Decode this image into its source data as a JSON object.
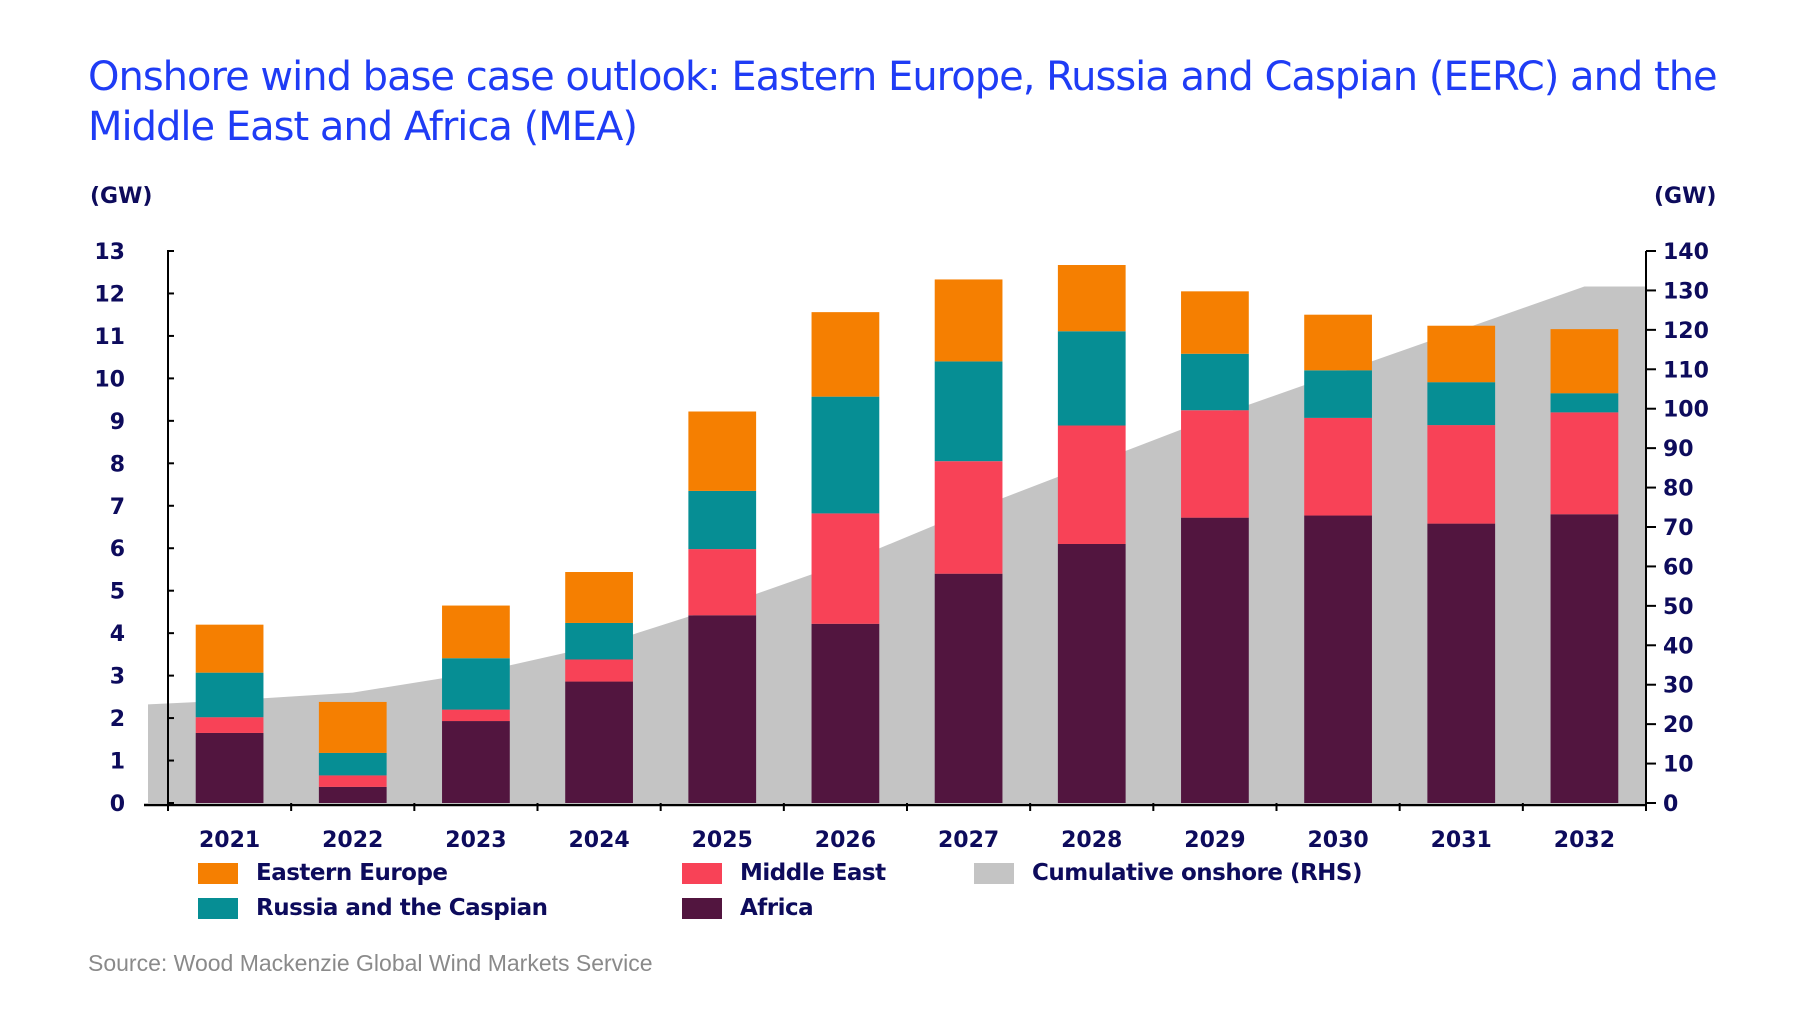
{
  "title": "Onshore wind base case outlook: Eastern Europe, Russia and Caspian (EERC) and the Middle East and Africa (MEA)",
  "source": "Source: Wood Mackenzie Global Wind Markets Service",
  "chart_data": {
    "type": "bar",
    "stacked": true,
    "title": "Onshore wind base case outlook: Eastern Europe, Russia and Caspian (EERC) and the Middle East and Africa (MEA)",
    "xlabel": "",
    "ylabel": "(GW)",
    "y2label": "(GW)",
    "ylim": [
      0,
      13
    ],
    "y2lim": [
      0,
      140
    ],
    "yticks": [
      "0",
      "1",
      "2",
      "3",
      "4",
      "5",
      "6",
      "7",
      "8",
      "9",
      "10",
      "11",
      "12",
      "13"
    ],
    "y2ticks": [
      "0",
      "10",
      "20",
      "30",
      "40",
      "50",
      "60",
      "70",
      "80",
      "90",
      "100",
      "110",
      "120",
      "130",
      "140"
    ],
    "grid": false,
    "legend_position": "bottom",
    "categories": [
      "2021",
      "2022",
      "2023",
      "2024",
      "2025",
      "2026",
      "2027",
      "2028",
      "2029",
      "2030",
      "2031",
      "2032"
    ],
    "series": [
      {
        "name": "Africa",
        "color": "#52153f",
        "axis": "left",
        "values": [
          1.65,
          0.38,
          1.93,
          2.86,
          4.42,
          4.22,
          5.4,
          6.1,
          6.72,
          6.77,
          6.58,
          6.8
        ]
      },
      {
        "name": "Middle East",
        "color": "#f84257",
        "axis": "left",
        "values": [
          0.37,
          0.27,
          0.27,
          0.52,
          1.56,
          2.6,
          2.65,
          2.79,
          2.53,
          2.3,
          2.32,
          2.4
        ]
      },
      {
        "name": "Russia and the Caspian",
        "color": "#068e94",
        "axis": "left",
        "values": [
          1.05,
          0.53,
          1.21,
          0.86,
          1.37,
          2.75,
          2.35,
          2.22,
          1.33,
          1.12,
          1.01,
          0.45
        ]
      },
      {
        "name": "Eastern Europe",
        "color": "#f57f01",
        "axis": "left",
        "values": [
          1.13,
          1.2,
          1.24,
          1.2,
          1.87,
          1.99,
          1.93,
          1.56,
          1.47,
          1.31,
          1.33,
          1.51
        ]
      },
      {
        "name": "Cumulative onshore (RHS)",
        "color": "#c4c4c4",
        "axis": "right",
        "type": "area",
        "values": [
          26,
          28,
          33,
          40,
          50,
          61,
          74,
          86,
          98,
          109,
          120,
          131
        ]
      }
    ]
  },
  "legend": [
    {
      "label": "Eastern Europe",
      "color": "#f57f01"
    },
    {
      "label": "Middle East",
      "color": "#f84257"
    },
    {
      "label": "Cumulative onshore (RHS)",
      "color": "#c4c4c4"
    },
    {
      "label": "Russia and the Caspian",
      "color": "#068e94"
    },
    {
      "label": "Africa",
      "color": "#52153f"
    }
  ]
}
